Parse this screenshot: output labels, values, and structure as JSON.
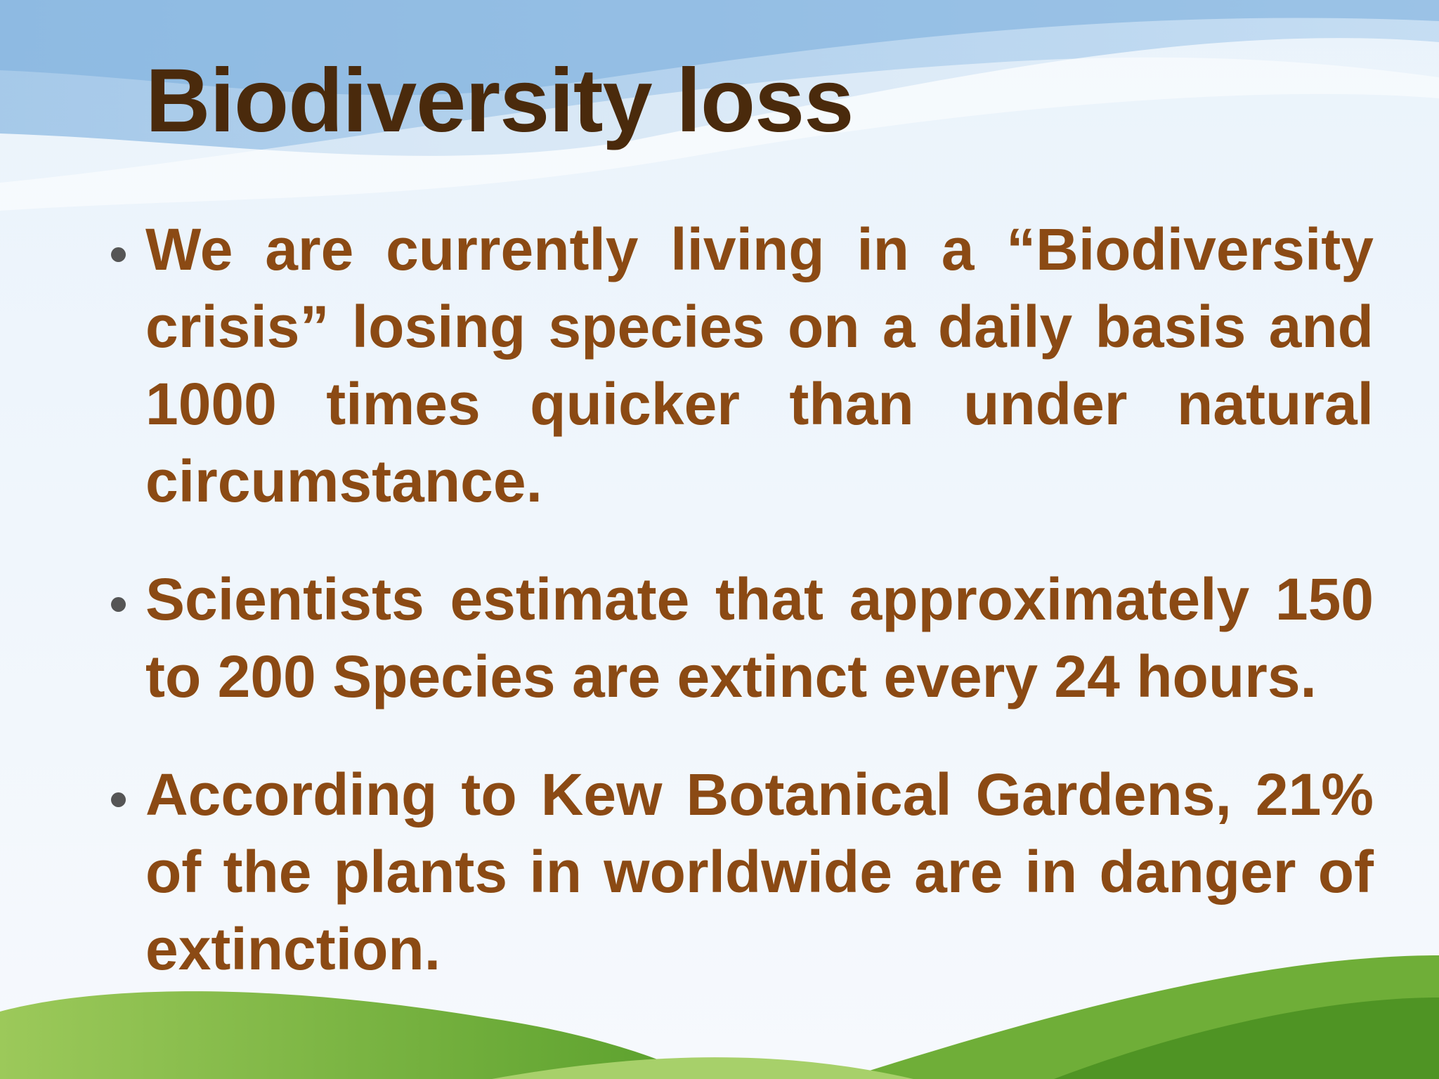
{
  "title": "Biodiversity loss",
  "bullets": [
    "We are currently living in a “Biodiversity crisis” losing species on a daily basis and 1000 times quicker than under natural circumstance.",
    "Scientists estimate that approximately 150 to 200 Species are extinct every 24 hours.",
    "According to Kew Botanical Gardens, 21% of the plants in worldwide are in danger of extinction."
  ]
}
